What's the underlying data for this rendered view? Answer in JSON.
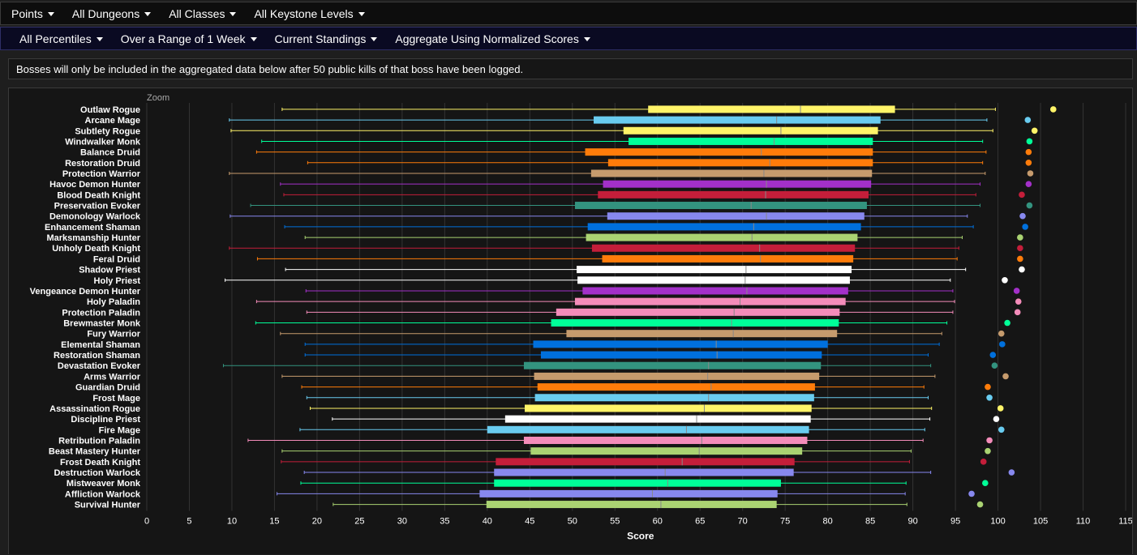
{
  "filters_row1": [
    {
      "label": "Points"
    },
    {
      "label": "All Dungeons"
    },
    {
      "label": "All Classes"
    },
    {
      "label": "All Keystone Levels"
    }
  ],
  "filters_row2": [
    {
      "label": "All Percentiles"
    },
    {
      "label": "Over a Range of 1 Week"
    },
    {
      "label": "Current Standings"
    },
    {
      "label": "Aggregate Using Normalized Scores"
    }
  ],
  "notice": "Bosses will only be included in the aggregated data below after 50 public kills of that boss have been logged.",
  "zoom_label": "Zoom",
  "chart_data": {
    "type": "boxplot",
    "xlabel": "Score",
    "ylabel": "",
    "xlim": [
      0,
      115
    ],
    "xticks": [
      0,
      5,
      10,
      15,
      20,
      25,
      30,
      35,
      40,
      45,
      50,
      55,
      60,
      65,
      70,
      75,
      80,
      85,
      90,
      95,
      100,
      105,
      110,
      115
    ],
    "grid": true,
    "series": [
      {
        "name": "Outlaw Rogue",
        "color": "#fff468",
        "min": 15.9,
        "q1": 58.9,
        "median": 76.8,
        "q3": 87.9,
        "max": 99.7,
        "outlier": 106.5
      },
      {
        "name": "Arcane Mage",
        "color": "#69ccf0",
        "min": 9.7,
        "q1": 52.5,
        "median": 74.0,
        "q3": 86.2,
        "max": 98.7,
        "outlier": 103.5
      },
      {
        "name": "Subtlety Rogue",
        "color": "#fff468",
        "min": 9.9,
        "q1": 56.0,
        "median": 74.5,
        "q3": 85.9,
        "max": 99.4,
        "outlier": 104.3
      },
      {
        "name": "Windwalker Monk",
        "color": "#00ff98",
        "min": 13.5,
        "q1": 56.6,
        "median": 73.7,
        "q3": 85.3,
        "max": 98.2,
        "outlier": 103.7
      },
      {
        "name": "Balance Druid",
        "color": "#ff7c0a",
        "min": 12.9,
        "q1": 51.5,
        "median": 72.2,
        "q3": 85.3,
        "max": 98.6,
        "outlier": 103.6
      },
      {
        "name": "Restoration Druid",
        "color": "#ff7c0a",
        "min": 18.9,
        "q1": 54.2,
        "median": 73.2,
        "q3": 85.3,
        "max": 98.2,
        "outlier": 103.6
      },
      {
        "name": "Protection Warrior",
        "color": "#c69b6d",
        "min": 9.7,
        "q1": 52.2,
        "median": 72.5,
        "q3": 85.2,
        "max": 98.5,
        "outlier": 103.8
      },
      {
        "name": "Havoc Demon Hunter",
        "color": "#a330c9",
        "min": 15.7,
        "q1": 53.6,
        "median": 72.8,
        "q3": 85.1,
        "max": 97.9,
        "outlier": 103.6
      },
      {
        "name": "Blood Death Knight",
        "color": "#c41e3a",
        "min": 16.1,
        "q1": 53.0,
        "median": 72.7,
        "q3": 84.8,
        "max": 97.4,
        "outlier": 102.8
      },
      {
        "name": "Preservation Evoker",
        "color": "#33937f",
        "min": 12.2,
        "q1": 50.3,
        "median": 71.0,
        "q3": 84.6,
        "max": 97.9,
        "outlier": 103.7
      },
      {
        "name": "Demonology Warlock",
        "color": "#8788ee",
        "min": 9.8,
        "q1": 54.1,
        "median": 72.8,
        "q3": 84.3,
        "max": 96.4,
        "outlier": 102.9
      },
      {
        "name": "Enhancement Shaman",
        "color": "#0070dd",
        "min": 16.2,
        "q1": 51.8,
        "median": 71.3,
        "q3": 83.9,
        "max": 97.1,
        "outlier": 103.2
      },
      {
        "name": "Marksmanship Hunter",
        "color": "#aad372",
        "min": 18.6,
        "q1": 51.6,
        "median": 71.1,
        "q3": 83.5,
        "max": 95.8,
        "outlier": 102.6
      },
      {
        "name": "Unholy Death Knight",
        "color": "#c41e3a",
        "min": 9.7,
        "q1": 52.3,
        "median": 72.0,
        "q3": 83.2,
        "max": 95.4,
        "outlier": 102.6
      },
      {
        "name": "Feral Druid",
        "color": "#ff7c0a",
        "min": 13.0,
        "q1": 53.5,
        "median": 72.1,
        "q3": 83.0,
        "max": 95.2,
        "outlier": 102.6
      },
      {
        "name": "Shadow Priest",
        "color": "#ffffff",
        "min": 16.3,
        "q1": 50.5,
        "median": 70.4,
        "q3": 82.8,
        "max": 96.2,
        "outlier": 102.8
      },
      {
        "name": "Holy Priest",
        "color": "#ffffff",
        "min": 9.2,
        "q1": 50.6,
        "median": 70.3,
        "q3": 82.6,
        "max": 94.4,
        "outlier": 100.8
      },
      {
        "name": "Vengeance Demon Hunter",
        "color": "#a330c9",
        "min": 18.7,
        "q1": 51.2,
        "median": 70.5,
        "q3": 82.4,
        "max": 94.7,
        "outlier": 102.2
      },
      {
        "name": "Holy Paladin",
        "color": "#f48cba",
        "min": 12.9,
        "q1": 50.3,
        "median": 69.7,
        "q3": 82.1,
        "max": 94.9,
        "outlier": 102.4
      },
      {
        "name": "Protection Paladin",
        "color": "#f48cba",
        "min": 18.8,
        "q1": 48.1,
        "median": 69.0,
        "q3": 81.4,
        "max": 94.7,
        "outlier": 102.3
      },
      {
        "name": "Brewmaster Monk",
        "color": "#00ff98",
        "min": 12.8,
        "q1": 47.5,
        "median": 68.7,
        "q3": 81.3,
        "max": 94.0,
        "outlier": 101.1
      },
      {
        "name": "Fury Warrior",
        "color": "#c69b6d",
        "min": 15.7,
        "q1": 49.3,
        "median": 68.9,
        "q3": 81.1,
        "max": 93.4,
        "outlier": 100.4
      },
      {
        "name": "Elemental Shaman",
        "color": "#0070dd",
        "min": 18.6,
        "q1": 45.4,
        "median": 66.9,
        "q3": 80.0,
        "max": 93.1,
        "outlier": 100.5
      },
      {
        "name": "Restoration Shaman",
        "color": "#0070dd",
        "min": 18.6,
        "q1": 46.3,
        "median": 67.0,
        "q3": 79.3,
        "max": 91.8,
        "outlier": 99.4
      },
      {
        "name": "Devastation Evoker",
        "color": "#33937f",
        "min": 9.0,
        "q1": 44.3,
        "median": 66.0,
        "q3": 79.2,
        "max": 92.1,
        "outlier": 99.6
      },
      {
        "name": "Arms Warrior",
        "color": "#c69b6d",
        "min": 15.9,
        "q1": 45.5,
        "median": 65.9,
        "q3": 79.0,
        "max": 92.6,
        "outlier": 100.9
      },
      {
        "name": "Guardian Druid",
        "color": "#ff7c0a",
        "min": 18.2,
        "q1": 45.9,
        "median": 66.3,
        "q3": 78.5,
        "max": 91.3,
        "outlier": 98.8
      },
      {
        "name": "Frost Mage",
        "color": "#69ccf0",
        "min": 18.8,
        "q1": 45.6,
        "median": 66.0,
        "q3": 78.4,
        "max": 91.8,
        "outlier": 99.0
      },
      {
        "name": "Assassination Rogue",
        "color": "#fff468",
        "min": 19.2,
        "q1": 44.4,
        "median": 65.5,
        "q3": 78.1,
        "max": 92.2,
        "outlier": 100.3
      },
      {
        "name": "Discipline Priest",
        "color": "#ffffff",
        "min": 21.8,
        "q1": 42.1,
        "median": 64.6,
        "q3": 78.0,
        "max": 92.0,
        "outlier": 99.8
      },
      {
        "name": "Fire Mage",
        "color": "#69ccf0",
        "min": 18.0,
        "q1": 40.0,
        "median": 63.4,
        "q3": 77.8,
        "max": 91.4,
        "outlier": 100.4
      },
      {
        "name": "Retribution Paladin",
        "color": "#f48cba",
        "min": 11.9,
        "q1": 44.3,
        "median": 65.2,
        "q3": 77.6,
        "max": 91.2,
        "outlier": 99.0
      },
      {
        "name": "Beast Mastery Hunter",
        "color": "#aad372",
        "min": 15.9,
        "q1": 45.1,
        "median": 64.9,
        "q3": 77.0,
        "max": 89.8,
        "outlier": 98.8
      },
      {
        "name": "Frost Death Knight",
        "color": "#c41e3a",
        "min": 15.8,
        "q1": 41.0,
        "median": 62.9,
        "q3": 76.1,
        "max": 89.6,
        "outlier": 98.3
      },
      {
        "name": "Destruction Warlock",
        "color": "#8788ee",
        "min": 18.5,
        "q1": 40.8,
        "median": 60.9,
        "q3": 76.0,
        "max": 92.1,
        "outlier": 101.6
      },
      {
        "name": "Mistweaver Monk",
        "color": "#00ff98",
        "min": 18.1,
        "q1": 40.8,
        "median": 61.2,
        "q3": 74.5,
        "max": 89.2,
        "outlier": 98.5
      },
      {
        "name": "Affliction Warlock",
        "color": "#8788ee",
        "min": 15.3,
        "q1": 39.1,
        "median": 59.4,
        "q3": 74.1,
        "max": 89.1,
        "outlier": 96.9
      },
      {
        "name": "Survival Hunter",
        "color": "#aad372",
        "min": 21.9,
        "q1": 39.9,
        "median": 60.4,
        "q3": 74.0,
        "max": 89.3,
        "outlier": 97.9
      }
    ]
  }
}
